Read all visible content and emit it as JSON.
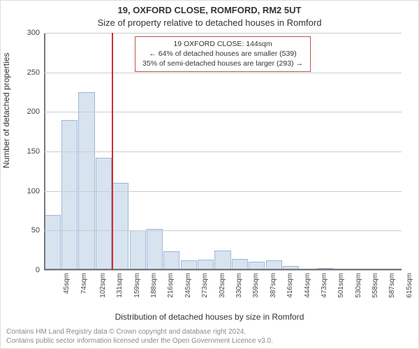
{
  "titles": {
    "address": "19, OXFORD CLOSE, ROMFORD, RM2 5UT",
    "subtitle": "Size of property relative to detached houses in Romford"
  },
  "axes": {
    "ylabel": "Number of detached properties",
    "xlabel": "Distribution of detached houses by size in Romford"
  },
  "callout": {
    "line1": "19 OXFORD CLOSE: 144sqm",
    "line2": "← 64% of detached houses are smaller (539)",
    "line3": "35% of semi-detached houses are larger (293) →",
    "border_color": "#b9534c"
  },
  "chart": {
    "type": "histogram",
    "y": {
      "min": 0,
      "max": 300,
      "ticks": [
        0,
        50,
        100,
        150,
        200,
        250,
        300
      ],
      "grid_color": "#c8ccd0"
    },
    "x": {
      "tick_labels": [
        "45sqm",
        "74sqm",
        "102sqm",
        "131sqm",
        "159sqm",
        "188sqm",
        "216sqm",
        "245sqm",
        "273sqm",
        "302sqm",
        "330sqm",
        "359sqm",
        "387sqm",
        "416sqm",
        "444sqm",
        "473sqm",
        "501sqm",
        "530sqm",
        "558sqm",
        "587sqm",
        "615sqm"
      ]
    },
    "bars": {
      "values": [
        70,
        190,
        225,
        142,
        110,
        50,
        52,
        24,
        12,
        13,
        25,
        14,
        11,
        12,
        5,
        0,
        3,
        0,
        0,
        1,
        1
      ],
      "fill": "#d8e3f0",
      "stroke": "#9db8d6",
      "width_frac": 0.95
    },
    "marker": {
      "after_bar_index": 3,
      "color": "#c9302c"
    },
    "background": "#ffffff",
    "axis_color": "#777777",
    "tick_font_size": 10
  },
  "footer": {
    "line1": "Contains HM Land Registry data © Crown copyright and database right 2024.",
    "line2": "Contains public sector information licensed under the Open Government Licence v3.0."
  }
}
